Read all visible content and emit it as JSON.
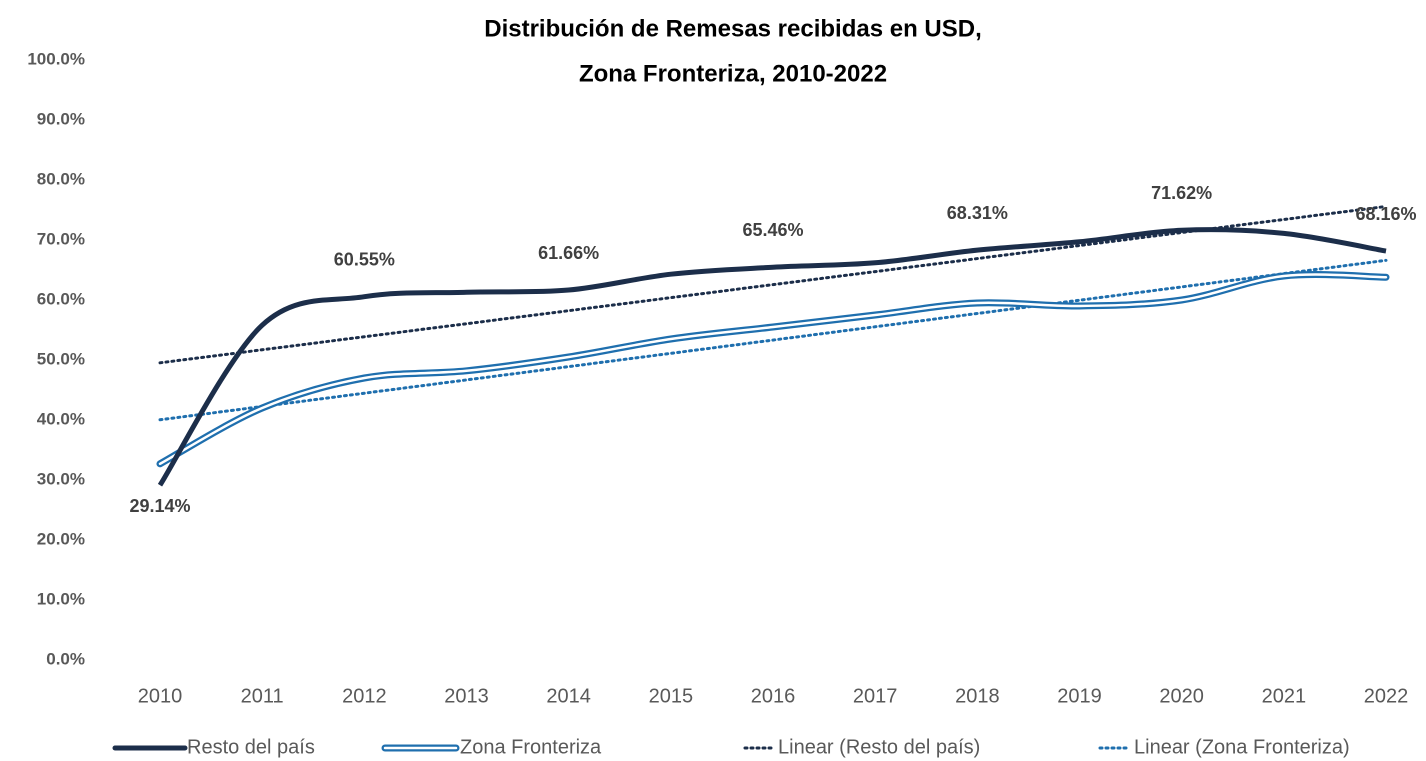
{
  "chart_data": {
    "type": "line",
    "title": "Distribución de Remesas recibidas en USD,",
    "subtitle": "Zona Fronteriza, 2010-2022",
    "categories": [
      "2010",
      "2011",
      "2012",
      "2013",
      "2014",
      "2015",
      "2016",
      "2017",
      "2018",
      "2019",
      "2020",
      "2021",
      "2022"
    ],
    "series": [
      {
        "name": "Resto del país",
        "color": "#1c2e4a",
        "values": [
          29.14,
          55.8,
          60.55,
          61.3,
          61.66,
          64.3,
          65.46,
          66.2,
          68.31,
          69.7,
          71.62,
          71.1,
          68.16
        ],
        "value_labels": [
          "29.14%",
          null,
          "60.55%",
          null,
          "61.66%",
          null,
          "65.46%",
          null,
          "68.31%",
          null,
          "71.62%",
          null,
          "68.16%"
        ],
        "trendline": {
          "name": "Linear (Resto del país)"
        }
      },
      {
        "name": "Zona Fronteriza",
        "color": "#1f6fae",
        "style": "double",
        "values": [
          32.7,
          42.0,
          47.0,
          48.2,
          50.5,
          53.5,
          55.5,
          57.5,
          59.5,
          59.0,
          60.0,
          64.0,
          63.8
        ],
        "trendline": {
          "name": "Linear (Zona Fronteriza)"
        }
      }
    ],
    "ylim": [
      0,
      100
    ],
    "yticks": [
      {
        "value": 0,
        "label": "0.0%"
      },
      {
        "value": 10,
        "label": "10.0%"
      },
      {
        "value": 20,
        "label": "20.0%"
      },
      {
        "value": 30,
        "label": "30.0%"
      },
      {
        "value": 40,
        "label": "40.0%"
      },
      {
        "value": 50,
        "label": "50.0%"
      },
      {
        "value": 60,
        "label": "60.0%"
      },
      {
        "value": 70,
        "label": "70.0%"
      },
      {
        "value": 80,
        "label": "80.0%"
      },
      {
        "value": 90,
        "label": "90.0%"
      },
      {
        "value": 100,
        "label": "100.0%"
      }
    ],
    "grid": false,
    "legend": "bottom"
  }
}
